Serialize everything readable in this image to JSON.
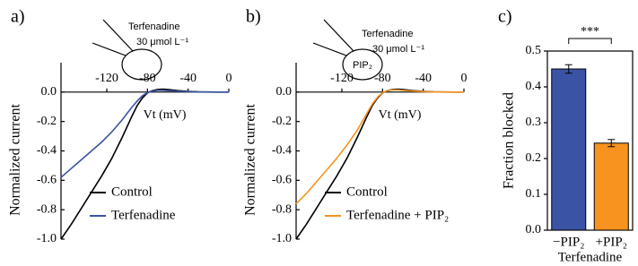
{
  "chart_data": [
    {
      "type": "line",
      "label": "a)",
      "xlabel": "Vt (mV)",
      "ylabel": "Normalized current",
      "annotations": [
        "Terfenadine",
        "30 μmol L⁻¹"
      ],
      "x": [
        -165,
        -155,
        -145,
        -135,
        -125,
        -115,
        -105,
        -95,
        -90,
        -85,
        -80,
        -75,
        -70,
        -65,
        -60,
        -50,
        -40,
        -30,
        -20,
        -10,
        0
      ],
      "series": [
        {
          "name": "Control",
          "color": "#000000",
          "values": [
            -1.0,
            -0.9,
            -0.79,
            -0.68,
            -0.57,
            -0.45,
            -0.31,
            -0.16,
            -0.09,
            -0.04,
            -0.005,
            0.01,
            0.018,
            0.02,
            0.018,
            0.01,
            0.005,
            0.002,
            0.001,
            0,
            0
          ]
        },
        {
          "name": "Terfenadine",
          "color": "#3a53a4",
          "values": [
            -0.58,
            -0.52,
            -0.46,
            -0.4,
            -0.34,
            -0.27,
            -0.19,
            -0.1,
            -0.06,
            -0.025,
            -0.003,
            0.008,
            0.012,
            0.012,
            0.01,
            0.006,
            0.003,
            0.001,
            0,
            0,
            0
          ]
        }
      ],
      "xlim": [
        -165,
        0
      ],
      "xticks": [
        -120,
        -80,
        -40,
        0
      ],
      "ylim": [
        -1.0,
        0.2
      ],
      "yticks": [
        {
          "value": 0,
          "label": "0.0"
        },
        -0.2,
        -0.4,
        -0.6,
        -0.8,
        {
          "value": -1,
          "label": "-1.0"
        }
      ]
    },
    {
      "type": "line",
      "label": "b)",
      "xlabel": "Vt (mV)",
      "ylabel": "Normalized current",
      "annotations": [
        "Terfenadine",
        "30 μmol L⁻¹",
        "PIP₂"
      ],
      "x": [
        -165,
        -155,
        -145,
        -135,
        -125,
        -115,
        -105,
        -95,
        -90,
        -85,
        -80,
        -75,
        -70,
        -65,
        -60,
        -50,
        -40,
        -30,
        -20,
        -10,
        0
      ],
      "series": [
        {
          "name": "Control",
          "color": "#000000",
          "values": [
            -1.0,
            -0.9,
            -0.79,
            -0.68,
            -0.57,
            -0.45,
            -0.31,
            -0.16,
            -0.09,
            -0.04,
            -0.005,
            0.01,
            0.018,
            0.02,
            0.018,
            0.01,
            0.005,
            0.002,
            0.001,
            0,
            0
          ]
        },
        {
          "name": "Terfenadine + PIP₂",
          "color": "#f7931e",
          "values": [
            -0.76,
            -0.69,
            -0.61,
            -0.53,
            -0.45,
            -0.36,
            -0.26,
            -0.14,
            -0.08,
            -0.035,
            -0.004,
            0.01,
            0.015,
            0.015,
            0.012,
            0.007,
            0.003,
            0.001,
            0,
            0,
            0
          ]
        }
      ],
      "xlim": [
        -165,
        0
      ],
      "xticks": [
        -120,
        -80,
        -40,
        0
      ],
      "ylim": [
        -1.0,
        0.2
      ],
      "yticks": [
        {
          "value": 0,
          "label": "0.0"
        },
        -0.2,
        -0.4,
        -0.6,
        -0.8,
        {
          "value": -1,
          "label": "-1.0"
        }
      ]
    },
    {
      "type": "bar",
      "label": "c)",
      "xlabel": "Terfenadine",
      "ylabel": "Fraction blocked",
      "annotation": "***",
      "categories": [
        "−PIP₂",
        "+PIP₂"
      ],
      "values": [
        0.45,
        0.243
      ],
      "errors": [
        0.012,
        0.01
      ],
      "colors": [
        "#3a53a4",
        "#f7931e"
      ],
      "ylim": [
        0,
        0.5
      ],
      "yticks": [
        {
          "value": 0,
          "label": "0.0"
        },
        0.1,
        0.2,
        0.3,
        0.4,
        0.5
      ]
    }
  ]
}
